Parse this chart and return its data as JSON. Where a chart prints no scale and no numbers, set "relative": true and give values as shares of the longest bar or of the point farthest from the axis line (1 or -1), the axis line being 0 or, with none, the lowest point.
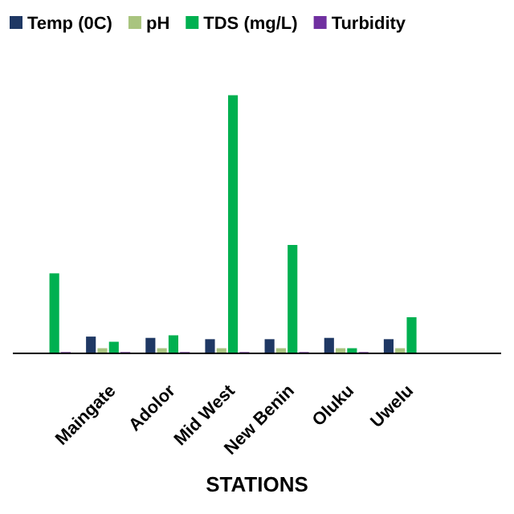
{
  "chart_data": {
    "type": "bar",
    "relative": true,
    "xlabel": "STATIONS",
    "legend": "top",
    "categories": [
      null,
      "Maingate",
      "Adolor",
      "Mid West",
      "New Benin",
      "Oluku",
      "Uwelu",
      null
    ],
    "series": [
      {
        "name": "Temp (0C)",
        "color": "#1f3864",
        "values": [
          null,
          0.065,
          0.06,
          0.055,
          0.055,
          0.06,
          0.055,
          null
        ]
      },
      {
        "name": "pH",
        "color": "#a9c47f",
        "values": [
          null,
          0.02,
          0.02,
          0.02,
          0.02,
          0.02,
          0.02,
          null
        ]
      },
      {
        "name": "TDS (mg/L)",
        "color": "#00b050",
        "values": [
          0.31,
          0.045,
          0.07,
          1,
          0.42,
          0.02,
          0.14,
          null
        ]
      },
      {
        "name": "Turbidity",
        "color": "#7030a0",
        "values": [
          0.005,
          0.005,
          0.005,
          0.005,
          0.005,
          0.005,
          null,
          null
        ]
      }
    ]
  }
}
